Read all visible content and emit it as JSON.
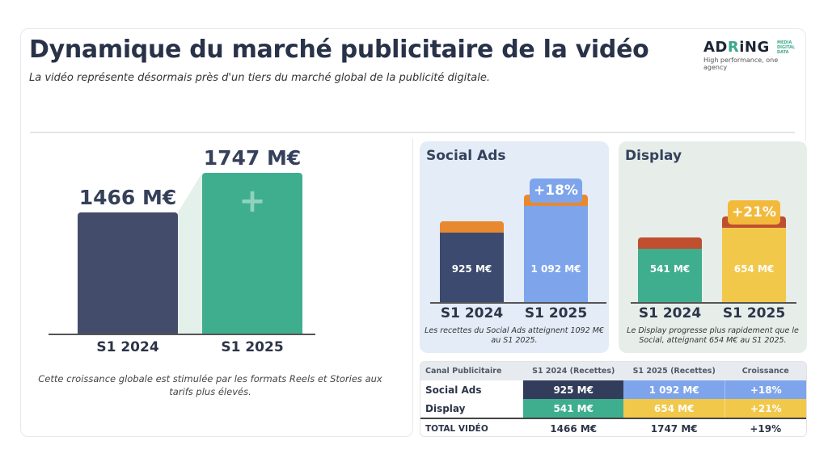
{
  "header": {
    "title": "Dynamique du marché publicitaire de la vidéo",
    "subtitle": "La vidéo représente désormais près d'un tiers du marché global de la publicité digitale.",
    "logo": {
      "name": "ADRiNG",
      "side": "MEDIA DIGITAL DATA",
      "tagline": "High performance, one agency"
    }
  },
  "colors": {
    "navy": "#434c6a",
    "green": "#3fae8f",
    "blue": "#7ea5ec",
    "orange": "#e8892f",
    "yellow": "#f2c84b",
    "rust": "#bf4f2f"
  },
  "chart_data": [
    {
      "type": "bar",
      "title": "",
      "categories": [
        "S1 2024",
        "S1 2025"
      ],
      "values": [
        1466,
        1747
      ],
      "labels": [
        "1466 M€",
        "1747 M€"
      ],
      "unit": "M€",
      "icon": "plus-icon"
    },
    {
      "type": "bar",
      "title": "Social Ads",
      "categories": [
        "S1 2024",
        "S1 2025"
      ],
      "values": [
        925,
        1092
      ],
      "labels": [
        "925 M€",
        "1 092 M€"
      ],
      "growth": "+18%",
      "note": "Les recettes du Social Ads atteignent 1092 M€ au S1 2025."
    },
    {
      "type": "bar",
      "title": "Display",
      "categories": [
        "S1 2024",
        "S1 2025"
      ],
      "values": [
        541,
        654
      ],
      "labels": [
        "541 M€",
        "654 M€"
      ],
      "growth": "+21%",
      "note": "Le Display progresse plus rapidement que le Social, atteignant 654 M€ au S1 2025."
    }
  ],
  "left_note": "Cette croissance globale est stimulée par les formats Reels et Stories aux tarifs plus élevés.",
  "table": {
    "headers": [
      "Canal Publicitaire",
      "S1 2024 (Recettes)",
      "S1 2025 (Recettes)",
      "Croissance"
    ],
    "rows": [
      [
        "Social Ads",
        "925 M€",
        "1 092 M€",
        "+18%"
      ],
      [
        "Display",
        "541 M€",
        "654 M€",
        "+21%"
      ],
      [
        "TOTAL VIDÉO",
        "1466 M€",
        "1747 M€",
        "+19%"
      ]
    ]
  }
}
